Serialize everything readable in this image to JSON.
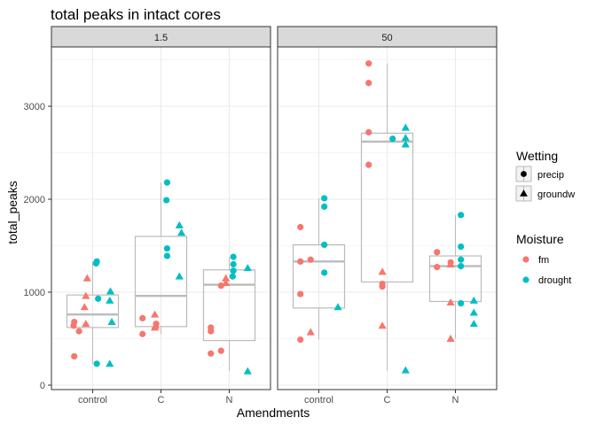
{
  "chart_data": {
    "type": "scatter",
    "title": "total peaks in intact cores",
    "xlabel": "Amendments",
    "ylabel": "total_peaks",
    "categories": [
      "control",
      "C",
      "N"
    ],
    "ylim": [
      0,
      3600
    ],
    "yticks": [
      0,
      1000,
      2000,
      3000
    ],
    "grid": true,
    "facets": [
      {
        "label": "1.5",
        "boxes": [
          {
            "category": "control",
            "q1": 620,
            "median": 760,
            "q3": 970,
            "lower": 230,
            "upper": 1330
          },
          {
            "category": "C",
            "q1": 630,
            "median": 960,
            "q3": 1600,
            "lower": 550,
            "upper": 2180
          },
          {
            "category": "N",
            "q1": 480,
            "median": 1080,
            "q3": 1240,
            "lower": 150,
            "upper": 1380
          }
        ],
        "points": [
          {
            "category": "control",
            "y": 310,
            "moisture": "fm",
            "wetting": "precip",
            "jitter": -0.27
          },
          {
            "category": "control",
            "y": 580,
            "moisture": "fm",
            "wetting": "precip",
            "jitter": -0.2
          },
          {
            "category": "control",
            "y": 640,
            "moisture": "fm",
            "wetting": "precip",
            "jitter": -0.28
          },
          {
            "category": "control",
            "y": 660,
            "moisture": "fm",
            "wetting": "groundw",
            "jitter": -0.1
          },
          {
            "category": "control",
            "y": 680,
            "moisture": "fm",
            "wetting": "precip",
            "jitter": -0.27
          },
          {
            "category": "control",
            "y": 840,
            "moisture": "fm",
            "wetting": "groundw",
            "jitter": -0.12
          },
          {
            "category": "control",
            "y": 960,
            "moisture": "fm",
            "wetting": "groundw",
            "jitter": -0.1
          },
          {
            "category": "control",
            "y": 1150,
            "moisture": "fm",
            "wetting": "groundw",
            "jitter": -0.08
          },
          {
            "category": "control",
            "y": 230,
            "moisture": "drought",
            "wetting": "precip",
            "jitter": 0.06
          },
          {
            "category": "control",
            "y": 230,
            "moisture": "drought",
            "wetting": "groundw",
            "jitter": 0.25
          },
          {
            "category": "control",
            "y": 680,
            "moisture": "drought",
            "wetting": "groundw",
            "jitter": 0.28
          },
          {
            "category": "control",
            "y": 910,
            "moisture": "drought",
            "wetting": "groundw",
            "jitter": 0.25
          },
          {
            "category": "control",
            "y": 930,
            "moisture": "drought",
            "wetting": "precip",
            "jitter": 0.08
          },
          {
            "category": "control",
            "y": 1010,
            "moisture": "drought",
            "wetting": "groundw",
            "jitter": 0.26
          },
          {
            "category": "control",
            "y": 1310,
            "moisture": "drought",
            "wetting": "precip",
            "jitter": 0.05
          },
          {
            "category": "control",
            "y": 1330,
            "moisture": "drought",
            "wetting": "precip",
            "jitter": 0.06
          },
          {
            "category": "C",
            "y": 550,
            "moisture": "fm",
            "wetting": "precip",
            "jitter": -0.27
          },
          {
            "category": "C",
            "y": 620,
            "moisture": "fm",
            "wetting": "groundw",
            "jitter": -0.09
          },
          {
            "category": "C",
            "y": 640,
            "moisture": "fm",
            "wetting": "groundw",
            "jitter": -0.08
          },
          {
            "category": "C",
            "y": 660,
            "moisture": "fm",
            "wetting": "precip",
            "jitter": -0.07
          },
          {
            "category": "C",
            "y": 720,
            "moisture": "fm",
            "wetting": "precip",
            "jitter": -0.27
          },
          {
            "category": "C",
            "y": 760,
            "moisture": "fm",
            "wetting": "groundw",
            "jitter": -0.09
          },
          {
            "category": "C",
            "y": 1170,
            "moisture": "drought",
            "wetting": "groundw",
            "jitter": 0.27
          },
          {
            "category": "C",
            "y": 1390,
            "moisture": "drought",
            "wetting": "precip",
            "jitter": 0.09
          },
          {
            "category": "C",
            "y": 1470,
            "moisture": "drought",
            "wetting": "precip",
            "jitter": 0.09
          },
          {
            "category": "C",
            "y": 1640,
            "moisture": "drought",
            "wetting": "groundw",
            "jitter": 0.3
          },
          {
            "category": "C",
            "y": 1720,
            "moisture": "drought",
            "wetting": "groundw",
            "jitter": 0.27
          },
          {
            "category": "C",
            "y": 1990,
            "moisture": "drought",
            "wetting": "precip",
            "jitter": 0.08
          },
          {
            "category": "C",
            "y": 2180,
            "moisture": "drought",
            "wetting": "precip",
            "jitter": 0.09
          },
          {
            "category": "N",
            "y": 340,
            "moisture": "fm",
            "wetting": "precip",
            "jitter": -0.27
          },
          {
            "category": "N",
            "y": 370,
            "moisture": "fm",
            "wetting": "precip",
            "jitter": -0.12
          },
          {
            "category": "N",
            "y": 580,
            "moisture": "fm",
            "wetting": "precip",
            "jitter": -0.27
          },
          {
            "category": "N",
            "y": 620,
            "moisture": "fm",
            "wetting": "precip",
            "jitter": -0.27
          },
          {
            "category": "N",
            "y": 1070,
            "moisture": "fm",
            "wetting": "precip",
            "jitter": -0.12
          },
          {
            "category": "N",
            "y": 1100,
            "moisture": "fm",
            "wetting": "groundw",
            "jitter": -0.05
          },
          {
            "category": "N",
            "y": 1150,
            "moisture": "fm",
            "wetting": "groundw",
            "jitter": -0.05
          },
          {
            "category": "N",
            "y": 150,
            "moisture": "drought",
            "wetting": "groundw",
            "jitter": 0.27
          },
          {
            "category": "N",
            "y": 1170,
            "moisture": "drought",
            "wetting": "precip",
            "jitter": 0.05
          },
          {
            "category": "N",
            "y": 1230,
            "moisture": "drought",
            "wetting": "precip",
            "jitter": 0.06
          },
          {
            "category": "N",
            "y": 1260,
            "moisture": "drought",
            "wetting": "groundw",
            "jitter": 0.27
          },
          {
            "category": "N",
            "y": 1300,
            "moisture": "drought",
            "wetting": "precip",
            "jitter": 0.06
          },
          {
            "category": "N",
            "y": 1380,
            "moisture": "drought",
            "wetting": "precip",
            "jitter": 0.06
          }
        ]
      },
      {
        "label": "50",
        "boxes": [
          {
            "category": "control",
            "q1": 830,
            "median": 1330,
            "q3": 1510,
            "lower": 490,
            "upper": 2010
          },
          {
            "category": "C",
            "q1": 1110,
            "median": 2620,
            "q3": 2710,
            "lower": 160,
            "upper": 3460
          },
          {
            "category": "N",
            "q1": 900,
            "median": 1280,
            "q3": 1390,
            "lower": 500,
            "upper": 1830
          }
        ],
        "points": [
          {
            "category": "control",
            "y": 490,
            "moisture": "fm",
            "wetting": "precip",
            "jitter": -0.27
          },
          {
            "category": "control",
            "y": 570,
            "moisture": "fm",
            "wetting": "groundw",
            "jitter": -0.12
          },
          {
            "category": "control",
            "y": 980,
            "moisture": "fm",
            "wetting": "precip",
            "jitter": -0.27
          },
          {
            "category": "control",
            "y": 1330,
            "moisture": "fm",
            "wetting": "precip",
            "jitter": -0.27
          },
          {
            "category": "control",
            "y": 1350,
            "moisture": "fm",
            "wetting": "precip",
            "jitter": -0.12
          },
          {
            "category": "control",
            "y": 1700,
            "moisture": "fm",
            "wetting": "precip",
            "jitter": -0.27
          },
          {
            "category": "control",
            "y": 840,
            "moisture": "drought",
            "wetting": "groundw",
            "jitter": 0.28
          },
          {
            "category": "control",
            "y": 1210,
            "moisture": "drought",
            "wetting": "precip",
            "jitter": 0.08
          },
          {
            "category": "control",
            "y": 1510,
            "moisture": "drought",
            "wetting": "precip",
            "jitter": 0.08
          },
          {
            "category": "control",
            "y": 1920,
            "moisture": "drought",
            "wetting": "precip",
            "jitter": 0.08
          },
          {
            "category": "control",
            "y": 2010,
            "moisture": "drought",
            "wetting": "precip",
            "jitter": 0.08
          },
          {
            "category": "C",
            "y": 640,
            "moisture": "fm",
            "wetting": "groundw",
            "jitter": -0.07
          },
          {
            "category": "C",
            "y": 1060,
            "moisture": "fm",
            "wetting": "precip",
            "jitter": -0.07
          },
          {
            "category": "C",
            "y": 1090,
            "moisture": "fm",
            "wetting": "precip",
            "jitter": -0.07
          },
          {
            "category": "C",
            "y": 1220,
            "moisture": "fm",
            "wetting": "groundw",
            "jitter": -0.07
          },
          {
            "category": "C",
            "y": 2370,
            "moisture": "fm",
            "wetting": "precip",
            "jitter": -0.27
          },
          {
            "category": "C",
            "y": 2720,
            "moisture": "fm",
            "wetting": "precip",
            "jitter": -0.27
          },
          {
            "category": "C",
            "y": 3250,
            "moisture": "fm",
            "wetting": "precip",
            "jitter": -0.27
          },
          {
            "category": "C",
            "y": 3460,
            "moisture": "fm",
            "wetting": "precip",
            "jitter": -0.27
          },
          {
            "category": "C",
            "y": 160,
            "moisture": "drought",
            "wetting": "groundw",
            "jitter": 0.27
          },
          {
            "category": "C",
            "y": 2590,
            "moisture": "drought",
            "wetting": "groundw",
            "jitter": 0.27
          },
          {
            "category": "C",
            "y": 2650,
            "moisture": "drought",
            "wetting": "precip",
            "jitter": 0.08
          },
          {
            "category": "C",
            "y": 2660,
            "moisture": "drought",
            "wetting": "groundw",
            "jitter": 0.27
          },
          {
            "category": "C",
            "y": 2770,
            "moisture": "drought",
            "wetting": "groundw",
            "jitter": 0.27
          },
          {
            "category": "N",
            "y": 500,
            "moisture": "fm",
            "wetting": "groundw",
            "jitter": -0.07
          },
          {
            "category": "N",
            "y": 890,
            "moisture": "fm",
            "wetting": "groundw",
            "jitter": -0.07
          },
          {
            "category": "N",
            "y": 1270,
            "moisture": "fm",
            "wetting": "precip",
            "jitter": -0.27
          },
          {
            "category": "N",
            "y": 1300,
            "moisture": "fm",
            "wetting": "groundw",
            "jitter": -0.07
          },
          {
            "category": "N",
            "y": 1320,
            "moisture": "fm",
            "wetting": "precip",
            "jitter": -0.07
          },
          {
            "category": "N",
            "y": 1430,
            "moisture": "fm",
            "wetting": "precip",
            "jitter": -0.27
          },
          {
            "category": "N",
            "y": 660,
            "moisture": "drought",
            "wetting": "groundw",
            "jitter": 0.27
          },
          {
            "category": "N",
            "y": 780,
            "moisture": "drought",
            "wetting": "groundw",
            "jitter": 0.27
          },
          {
            "category": "N",
            "y": 880,
            "moisture": "drought",
            "wetting": "precip",
            "jitter": 0.08
          },
          {
            "category": "N",
            "y": 910,
            "moisture": "drought",
            "wetting": "groundw",
            "jitter": 0.27
          },
          {
            "category": "N",
            "y": 1280,
            "moisture": "drought",
            "wetting": "precip",
            "jitter": 0.08
          },
          {
            "category": "N",
            "y": 1350,
            "moisture": "drought",
            "wetting": "precip",
            "jitter": 0.08
          },
          {
            "category": "N",
            "y": 1490,
            "moisture": "drought",
            "wetting": "precip",
            "jitter": 0.08
          },
          {
            "category": "N",
            "y": 1830,
            "moisture": "drought",
            "wetting": "precip",
            "jitter": 0.08
          }
        ]
      }
    ],
    "legends": {
      "wetting": {
        "title": "Wetting",
        "entries": [
          {
            "key": "precip",
            "label": "precip",
            "shape": "circle"
          },
          {
            "key": "groundw",
            "label": "groundw",
            "shape": "triangle"
          }
        ]
      },
      "moisture": {
        "title": "Moisture",
        "entries": [
          {
            "key": "fm",
            "label": "fm",
            "color": "#F8766D"
          },
          {
            "key": "drought",
            "label": "drought",
            "color": "#00BFC4"
          }
        ]
      }
    },
    "legend_placement": "right",
    "colors": {
      "fm": "#F8766D",
      "drought": "#00BFC4",
      "box": "#BBBBBB",
      "strip_fill": "#D9D9D9",
      "grid": "#EBEBEB",
      "panel_border": "#333333"
    }
  }
}
